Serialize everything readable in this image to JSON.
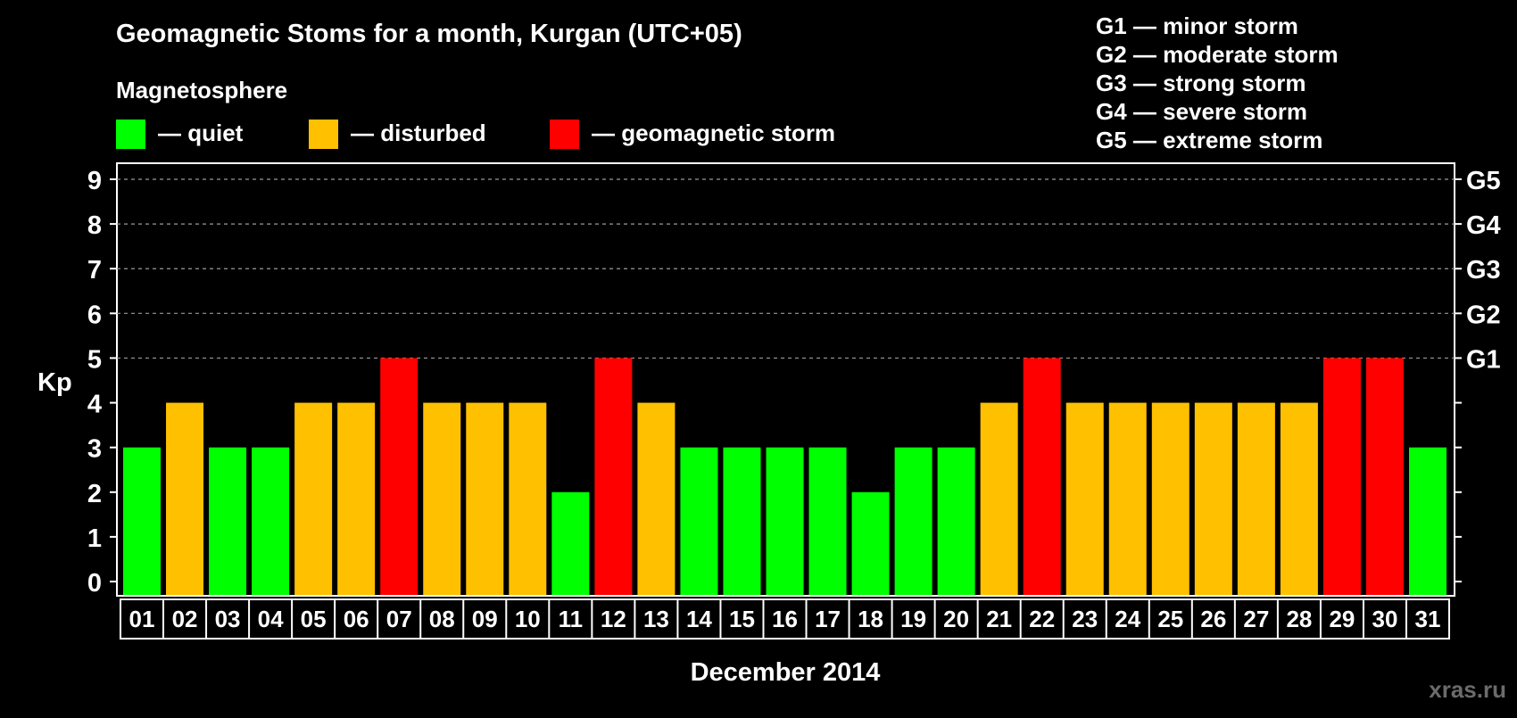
{
  "chart_data": {
    "type": "bar",
    "title": "Geomagnetic Stoms for a month, Kurgan (UTC+05)",
    "legend_title": "Magnetosphere",
    "legend": [
      {
        "label": "— quiet",
        "color": "#00ff00"
      },
      {
        "label": "— disturbed",
        "color": "#ffc000"
      },
      {
        "label": "— geomagnetic storm",
        "color": "#ff0000"
      }
    ],
    "storm_scale": [
      "G1 — minor storm",
      "G2 — moderate storm",
      "G3 — strong storm",
      "G4 — severe storm",
      "G5 — extreme storm"
    ],
    "ylabel": "Kp",
    "xlabel": "December 2014",
    "ylim": [
      0,
      9
    ],
    "yticks": [
      "0",
      "1",
      "2",
      "3",
      "4",
      "5",
      "6",
      "7",
      "8",
      "9"
    ],
    "right_axis_labels": [
      {
        "label": "G1",
        "kp": 5
      },
      {
        "label": "G2",
        "kp": 6
      },
      {
        "label": "G3",
        "kp": 7
      },
      {
        "label": "G4",
        "kp": 8
      },
      {
        "label": "G5",
        "kp": 9
      }
    ],
    "grid_dashed_at": [
      5,
      6,
      7,
      8,
      9
    ],
    "categories": [
      "01",
      "02",
      "03",
      "04",
      "05",
      "06",
      "07",
      "08",
      "09",
      "10",
      "11",
      "12",
      "13",
      "14",
      "15",
      "16",
      "17",
      "18",
      "19",
      "20",
      "21",
      "22",
      "23",
      "24",
      "25",
      "26",
      "27",
      "28",
      "29",
      "30",
      "31"
    ],
    "values": [
      3,
      4,
      3,
      3,
      4,
      4,
      5,
      4,
      4,
      4,
      2,
      5,
      4,
      3,
      3,
      3,
      3,
      2,
      3,
      3,
      4,
      5,
      4,
      4,
      4,
      4,
      4,
      4,
      5,
      5,
      3
    ],
    "colors": {
      "quiet": "#00ff00",
      "disturbed": "#ffc000",
      "storm": "#ff0000"
    },
    "watermark": "xras.ru"
  }
}
